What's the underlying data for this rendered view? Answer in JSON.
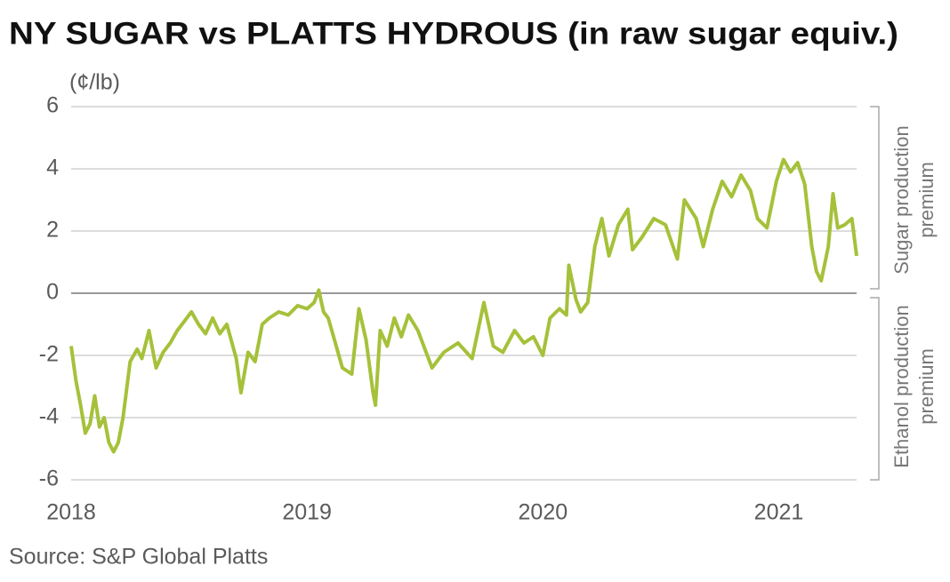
{
  "chart_data": {
    "type": "line",
    "title": "NY SUGAR vs PLATTS HYDROUS (in raw sugar equiv.)",
    "y_label": "(¢/lb)",
    "source": "Source: S&P Global Platts",
    "annotations": [
      {
        "lines": [
          "Sugar production",
          "premium"
        ]
      },
      {
        "lines": [
          "Ethanol production",
          "premium"
        ]
      }
    ],
    "xlim": [
      2018,
      2021.33
    ],
    "xticks": [
      2018,
      2019,
      2020,
      2021
    ],
    "ylim": [
      -6,
      6
    ],
    "yticks": [
      -6,
      -4,
      -2,
      0,
      2,
      4,
      6
    ],
    "grid": true,
    "series": [
      {
        "name": "NY sugar vs Platts hydrous",
        "color": "#a5c13a",
        "x": [
          2018.0,
          2018.02,
          2018.04,
          2018.06,
          2018.08,
          2018.1,
          2018.12,
          2018.14,
          2018.16,
          2018.18,
          2018.2,
          2018.22,
          2018.25,
          2018.28,
          2018.3,
          2018.33,
          2018.36,
          2018.39,
          2018.42,
          2018.45,
          2018.48,
          2018.51,
          2018.54,
          2018.57,
          2018.6,
          2018.63,
          2018.66,
          2018.7,
          2018.72,
          2018.75,
          2018.78,
          2018.81,
          2018.84,
          2018.88,
          2018.92,
          2018.96,
          2019.0,
          2019.03,
          2019.05,
          2019.07,
          2019.09,
          2019.12,
          2019.15,
          2019.19,
          2019.22,
          2019.25,
          2019.28,
          2019.29,
          2019.31,
          2019.34,
          2019.37,
          2019.4,
          2019.43,
          2019.47,
          2019.53,
          2019.58,
          2019.64,
          2019.7,
          2019.75,
          2019.79,
          2019.83,
          2019.88,
          2019.92,
          2019.96,
          2020.0,
          2020.03,
          2020.07,
          2020.1,
          2020.11,
          2020.14,
          2020.16,
          2020.19,
          2020.22,
          2020.25,
          2020.28,
          2020.32,
          2020.36,
          2020.38,
          2020.42,
          2020.47,
          2020.52,
          2020.57,
          2020.6,
          2020.65,
          2020.68,
          2020.72,
          2020.76,
          2020.8,
          2020.84,
          2020.88,
          2020.91,
          2020.95,
          2020.99,
          2021.02,
          2021.05,
          2021.08,
          2021.11,
          2021.14,
          2021.16,
          2021.18,
          2021.21,
          2021.23,
          2021.25,
          2021.28,
          2021.31,
          2021.33
        ],
        "values": [
          -1.7,
          -2.8,
          -3.6,
          -4.5,
          -4.2,
          -3.3,
          -4.3,
          -4.0,
          -4.8,
          -5.1,
          -4.8,
          -4.0,
          -2.2,
          -1.8,
          -2.1,
          -1.2,
          -2.4,
          -1.9,
          -1.6,
          -1.2,
          -0.9,
          -0.6,
          -1.0,
          -1.3,
          -0.8,
          -1.3,
          -1.0,
          -2.1,
          -3.2,
          -1.9,
          -2.2,
          -1.0,
          -0.8,
          -0.6,
          -0.7,
          -0.4,
          -0.5,
          -0.3,
          0.1,
          -0.6,
          -0.8,
          -1.6,
          -2.4,
          -2.6,
          -0.5,
          -1.5,
          -3.2,
          -3.6,
          -1.2,
          -1.7,
          -0.8,
          -1.4,
          -0.7,
          -1.2,
          -2.4,
          -1.9,
          -1.6,
          -2.1,
          -0.3,
          -1.7,
          -1.9,
          -1.2,
          -1.6,
          -1.4,
          -2.0,
          -0.8,
          -0.5,
          -0.7,
          0.9,
          -0.2,
          -0.6,
          -0.3,
          1.5,
          2.4,
          1.2,
          2.2,
          2.7,
          1.4,
          1.8,
          2.4,
          2.2,
          1.1,
          3.0,
          2.4,
          1.5,
          2.7,
          3.6,
          3.1,
          3.8,
          3.3,
          2.4,
          2.1,
          3.6,
          4.3,
          3.9,
          4.2,
          3.5,
          1.5,
          0.7,
          0.4,
          1.5,
          3.2,
          2.1,
          2.2,
          2.4,
          1.2
        ]
      }
    ]
  }
}
